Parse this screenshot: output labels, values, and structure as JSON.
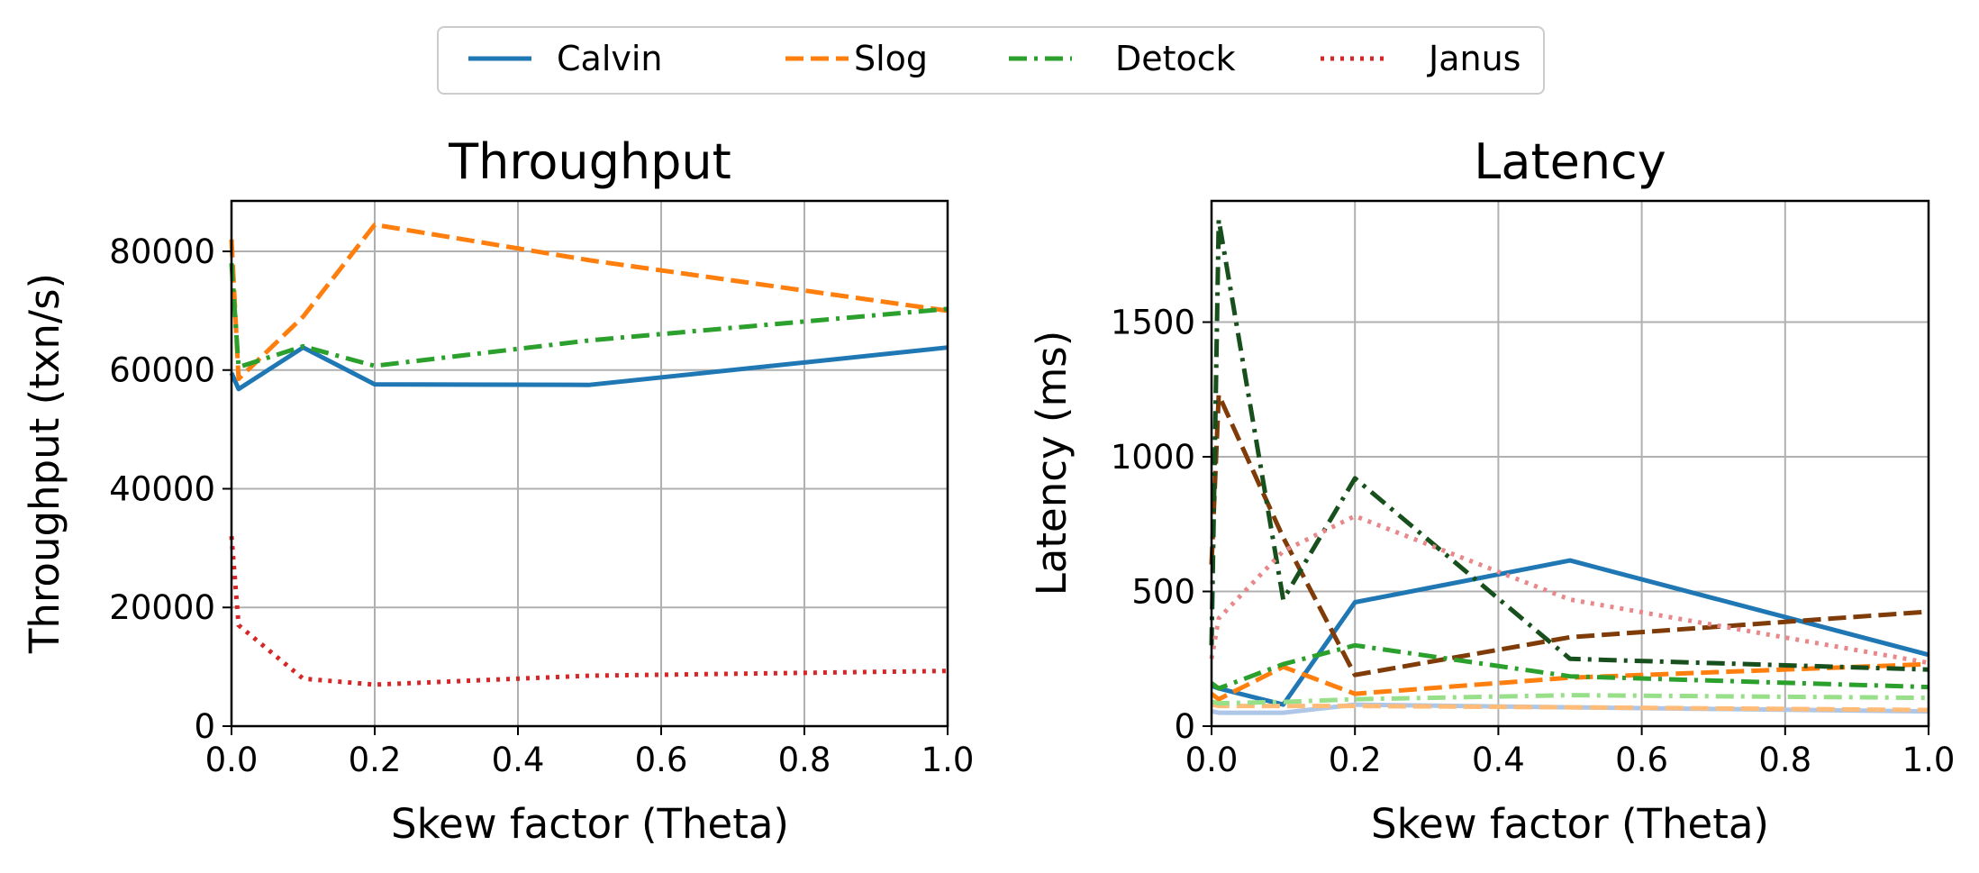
{
  "legend": {
    "entries": [
      {
        "label": "Calvin",
        "color": "#1f77b4",
        "dash": "solid"
      },
      {
        "label": "Slog",
        "color": "#ff7f0e",
        "dash": "dashed"
      },
      {
        "label": "Detock",
        "color": "#2ca02c",
        "dash": "dashdot"
      },
      {
        "label": "Janus",
        "color": "#d62728",
        "dash": "dotted"
      }
    ]
  },
  "chart_data": [
    {
      "type": "line",
      "title": "Throughput",
      "xlabel": "Skew factor (Theta)",
      "ylabel": "Throughput (txn/s)",
      "xlim": [
        0.0,
        1.0
      ],
      "ylim": [
        0,
        88500
      ],
      "xticks": [
        0.0,
        0.2,
        0.4,
        0.6,
        0.8,
        1.0
      ],
      "xtick_labels": [
        "0.0",
        "0.2",
        "0.4",
        "0.6",
        "0.8",
        "1.0"
      ],
      "yticks": [
        0,
        20000,
        40000,
        60000,
        80000
      ],
      "ytick_labels": [
        "0",
        "20000",
        "40000",
        "60000",
        "80000"
      ],
      "grid": true,
      "series": [
        {
          "name": "Calvin",
          "color": "#1f77b4",
          "dash": "solid",
          "x": [
            0.0,
            0.01,
            0.1,
            0.2,
            0.5,
            1.0
          ],
          "y": [
            59500,
            56800,
            63800,
            57600,
            57500,
            63800
          ]
        },
        {
          "name": "Slog",
          "color": "#ff7f0e",
          "dash": "dashed",
          "x": [
            0.0,
            0.01,
            0.1,
            0.2,
            0.5,
            1.0
          ],
          "y": [
            82000,
            58500,
            69000,
            84500,
            78500,
            70000
          ]
        },
        {
          "name": "Detock",
          "color": "#2ca02c",
          "dash": "dashdot",
          "x": [
            0.0,
            0.01,
            0.1,
            0.2,
            0.5,
            1.0
          ],
          "y": [
            78000,
            60500,
            64000,
            60700,
            65000,
            70300
          ]
        },
        {
          "name": "Janus",
          "color": "#d62728",
          "dash": "dotted",
          "x": [
            0.0,
            0.01,
            0.1,
            0.2,
            0.5,
            1.0
          ],
          "y": [
            32000,
            17000,
            8000,
            7000,
            8500,
            9300
          ]
        }
      ]
    },
    {
      "type": "line",
      "title": "Latency",
      "xlabel": "Skew factor (Theta)",
      "ylabel": "Latency (ms)",
      "xlim": [
        0.0,
        1.0
      ],
      "ylim": [
        0,
        1950
      ],
      "xticks": [
        0.0,
        0.2,
        0.4,
        0.6,
        0.8,
        1.0
      ],
      "xtick_labels": [
        "0.0",
        "0.2",
        "0.4",
        "0.6",
        "0.8",
        "1.0"
      ],
      "yticks": [
        0,
        500,
        1000,
        1500
      ],
      "ytick_labels": [
        "0",
        "500",
        "1000",
        "1500"
      ],
      "grid": true,
      "series": [
        {
          "color": "#aec7e8",
          "dash": "solid",
          "x": [
            0.0,
            0.01,
            0.1,
            0.2,
            0.5,
            1.0
          ],
          "y": [
            55,
            50,
            50,
            80,
            70,
            55
          ]
        },
        {
          "color": "#1f77b4",
          "dash": "solid",
          "x": [
            0.0,
            0.01,
            0.1,
            0.2,
            0.5,
            1.0
          ],
          "y": [
            150,
            140,
            80,
            460,
            615,
            265
          ]
        },
        {
          "color": "#ffbb78",
          "dash": "dashed",
          "x": [
            0.0,
            0.01,
            0.1,
            0.2,
            0.5,
            1.0
          ],
          "y": [
            80,
            75,
            75,
            75,
            70,
            60
          ]
        },
        {
          "color": "#ff7f0e",
          "dash": "dashed",
          "x": [
            0.0,
            0.01,
            0.1,
            0.2,
            0.5,
            1.0
          ],
          "y": [
            120,
            100,
            220,
            120,
            180,
            230
          ]
        },
        {
          "color": "#7f3b08",
          "dash": "dashed",
          "x": [
            0.0,
            0.01,
            0.1,
            0.2,
            0.5,
            1.0
          ],
          "y": [
            600,
            1230,
            700,
            190,
            330,
            425
          ]
        },
        {
          "color": "#98df8a",
          "dash": "dashdot",
          "x": [
            0.0,
            0.01,
            0.1,
            0.2,
            0.5,
            1.0
          ],
          "y": [
            90,
            85,
            90,
            100,
            115,
            105
          ]
        },
        {
          "color": "#2ca02c",
          "dash": "dashdot",
          "x": [
            0.0,
            0.01,
            0.1,
            0.2,
            0.5,
            1.0
          ],
          "y": [
            160,
            140,
            230,
            300,
            185,
            145
          ]
        },
        {
          "color": "#17501c",
          "dash": "dashdot",
          "x": [
            0.0,
            0.01,
            0.1,
            0.2,
            0.5,
            1.0
          ],
          "y": [
            300,
            1880,
            470,
            920,
            250,
            210
          ]
        },
        {
          "color": "#e8888a",
          "dash": "dotted",
          "x": [
            0.0,
            0.01,
            0.1,
            0.2,
            0.5,
            1.0
          ],
          "y": [
            250,
            400,
            650,
            780,
            470,
            235
          ]
        }
      ]
    }
  ]
}
